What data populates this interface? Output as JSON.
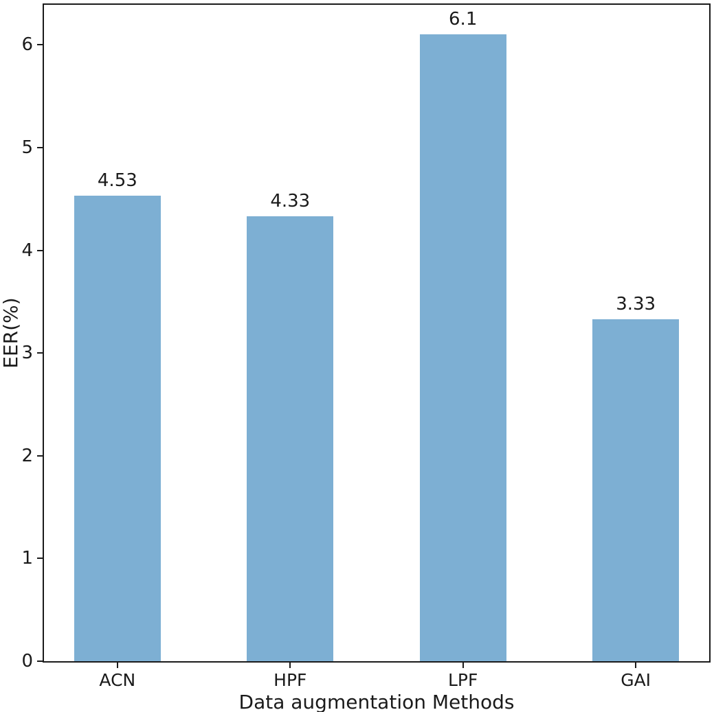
{
  "figure": {
    "background_color": "#ffffff"
  },
  "chart_data": {
    "type": "bar",
    "title": "",
    "categories": [
      "ACN",
      "HPF",
      "LPF",
      "GAI"
    ],
    "values": [
      4.53,
      4.33,
      6.1,
      3.33
    ],
    "value_labels": [
      "4.53",
      "4.33",
      "6.1",
      "3.33"
    ],
    "xlabel": "Data augmentation Methods",
    "ylabel": "EER(%)",
    "yticks": [
      0,
      1,
      2,
      3,
      4,
      5,
      6
    ],
    "ylim": [
      0,
      6.39
    ],
    "xlim": [
      -0.425,
      3.425
    ],
    "bar_width_units": 0.5,
    "bar_color": "#7dafd3",
    "axis_color": "#1a1a1a",
    "text_color": "#1a1a1a",
    "grid": false,
    "legend": null
  }
}
